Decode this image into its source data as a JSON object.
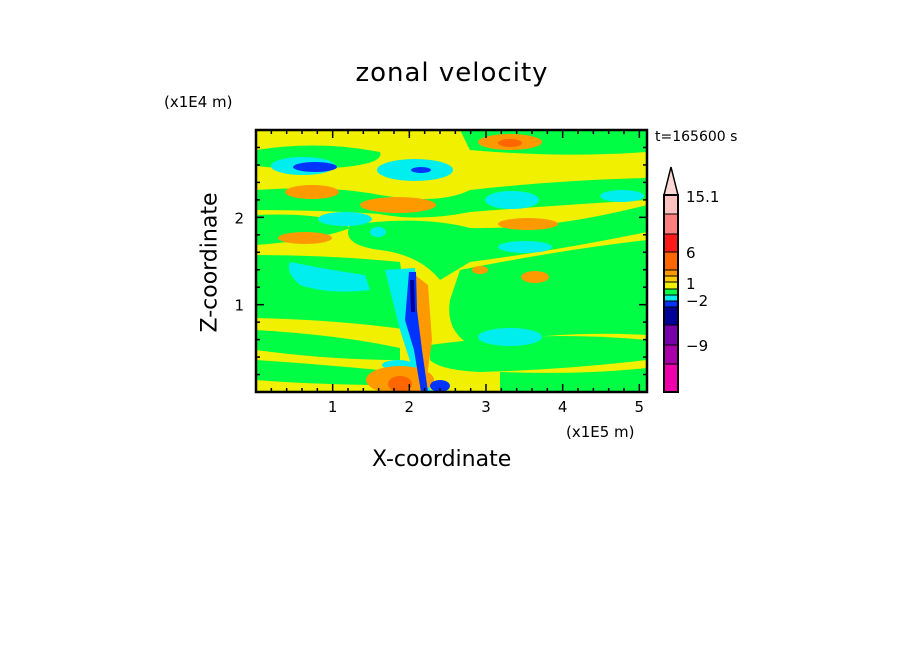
{
  "chart_data": {
    "type": "heatmap",
    "subtype": "filled-contour",
    "title": "zonal velocity",
    "xlabel": "X-coordinate",
    "ylabel": "Z-coordinate",
    "x_unit": "(x1E5 m)",
    "y_unit": "(x1E4 m)",
    "annotation": "t=165600 s",
    "xlim": [
      0,
      5.1
    ],
    "ylim": [
      0,
      3.0
    ],
    "x_ticks": [
      "1",
      "2",
      "3",
      "4",
      "5"
    ],
    "y_ticks": [
      "1",
      "2"
    ],
    "colorbar": {
      "labels": [
        "15.1",
        "6",
        "1",
        "-2",
        "-9"
      ],
      "colors": [
        "#ffd8d4",
        "#ffc0c0",
        "#ff7f7f",
        "#ff1a1a",
        "#ff6600",
        "#ff9900",
        "#ffcc00",
        "#f0f000",
        "#00ff44",
        "#00eeee",
        "#0033ff",
        "#000099",
        "#7700aa",
        "#aa00aa",
        "#ee00aa"
      ]
    }
  }
}
